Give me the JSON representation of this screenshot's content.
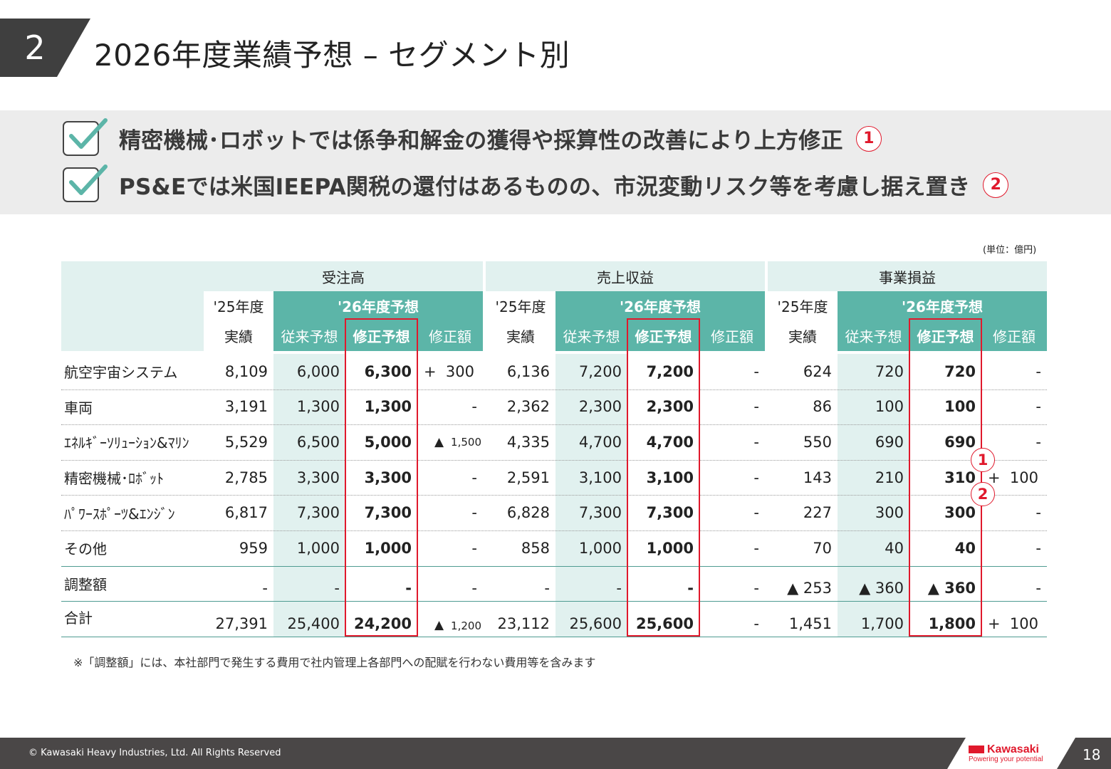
{
  "header": {
    "section_number": "2",
    "title": "2026年度業績予想 – セグメント別"
  },
  "summary": {
    "points": [
      {
        "text": "精密機械･ロボットでは係争和解金の獲得や採算性の改善により上方修正",
        "marker": "1"
      },
      {
        "text": "PS&Eでは米国IEEPA関税の還付はあるものの、市況変動リスク等を考慮し据え置き",
        "marker": "2"
      }
    ]
  },
  "unit_note": "(単位：億円)",
  "table": {
    "groups": [
      "受注高",
      "売上収益",
      "事業損益"
    ],
    "subheaders": {
      "fy25": "'25年度",
      "fy25_sub": "実績",
      "fy26": "'26年度予想",
      "prev": "従来予想",
      "revised": "修正予想",
      "change": "修正額"
    },
    "rows": [
      {
        "label": "航空宇宙システム",
        "orders": [
          "8,109",
          "6,000",
          "6,300",
          "+  300"
        ],
        "revenue": [
          "6,136",
          "7,200",
          "7,200",
          "-"
        ],
        "profit": [
          "624",
          "720",
          "720",
          "-"
        ]
      },
      {
        "label": "車両",
        "orders": [
          "3,191",
          "1,300",
          "1,300",
          "-"
        ],
        "revenue": [
          "2,362",
          "2,300",
          "2,300",
          "-"
        ],
        "profit": [
          "86",
          "100",
          "100",
          "-"
        ]
      },
      {
        "label": "ｴﾈﾙｷﾞｰｿﾘｭｰｼｮﾝ&ﾏﾘﾝ",
        "orders": [
          "5,529",
          "6,500",
          "5,000",
          "▲ 1,500"
        ],
        "revenue": [
          "4,335",
          "4,700",
          "4,700",
          "-"
        ],
        "profit": [
          "550",
          "690",
          "690",
          "-"
        ]
      },
      {
        "label": "精密機械･ﾛﾎﾞｯﾄ",
        "orders": [
          "2,785",
          "3,300",
          "3,300",
          "-"
        ],
        "revenue": [
          "2,591",
          "3,100",
          "3,100",
          "-"
        ],
        "profit": [
          "143",
          "210",
          "310",
          "+  100"
        ]
      },
      {
        "label": "ﾊﾟﾜｰｽﾎﾟｰﾂ&ｴﾝｼﾞﾝ",
        "orders": [
          "6,817",
          "7,300",
          "7,300",
          "-"
        ],
        "revenue": [
          "6,828",
          "7,300",
          "7,300",
          "-"
        ],
        "profit": [
          "227",
          "300",
          "300",
          "-"
        ]
      },
      {
        "label": "その他",
        "orders": [
          "959",
          "1,000",
          "1,000",
          "-"
        ],
        "revenue": [
          "858",
          "1,000",
          "1,000",
          "-"
        ],
        "profit": [
          "70",
          "40",
          "40",
          "-"
        ]
      },
      {
        "label": "調整額",
        "label_sup": "※",
        "orders": [
          "-",
          "-",
          "-",
          "-"
        ],
        "revenue": [
          "-",
          "-",
          "-",
          "-"
        ],
        "profit": [
          "▲ 253",
          "▲ 360",
          "▲ 360",
          "-"
        ]
      },
      {
        "label": "合計",
        "orders": [
          "27,391",
          "25,400",
          "24,200",
          "▲ 1,200"
        ],
        "revenue": [
          "23,112",
          "25,600",
          "25,600",
          "-"
        ],
        "profit": [
          "1,451",
          "1,700",
          "1,800",
          "+  100"
        ]
      }
    ],
    "annotations": [
      "1",
      "2"
    ]
  },
  "footnote": "※「調整額」には、本社部門で発生する費用で社内管理上各部門への配賦を行わない費用等を含みます",
  "footer": {
    "copyright": "© Kawasaki Heavy Industries, Ltd. All Rights Reserved",
    "logo_text": "Kawasaki",
    "logo_tagline": "Powering your potential",
    "page_number": "18"
  },
  "colors": {
    "accent_teal": "#5cb5a8",
    "light_teal": "#e1f1ef",
    "highlight_red": "#e0192c",
    "check_green": "#5cb5a8",
    "dark_gray": "#4a4747"
  }
}
